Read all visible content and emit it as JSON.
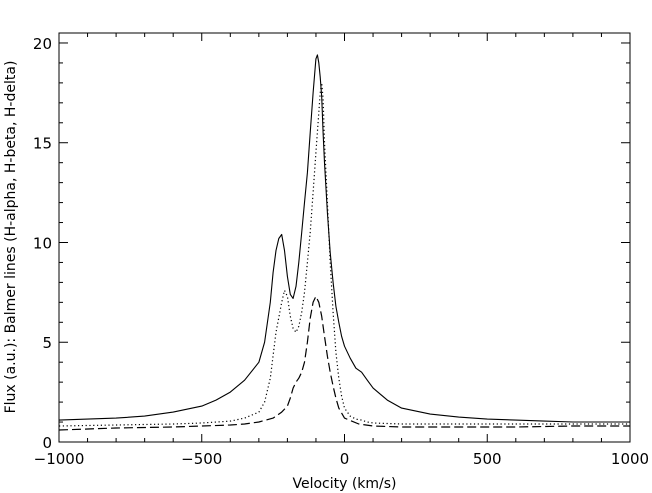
{
  "chart_data": {
    "type": "line",
    "xlabel": "Velocity (km/s)",
    "ylabel": "Flux (a.u.): Balmer lines (H-alpha, H-beta, H-delta)",
    "xlim": [
      -1000,
      1000
    ],
    "ylim": [
      0,
      20.5
    ],
    "xticks": [
      -1000,
      -500,
      0,
      500,
      1000
    ],
    "xtick_labels": [
      "−1000",
      "−500",
      "0",
      "500",
      "1000"
    ],
    "yticks": [
      0,
      5,
      10,
      15,
      20
    ],
    "ytick_labels": [
      "0",
      "5",
      "10",
      "15",
      "20"
    ],
    "grid": false,
    "legend": "none",
    "series": [
      {
        "line_style": "solid",
        "x": [
          -1000,
          -900,
          -800,
          -700,
          -600,
          -500,
          -450,
          -400,
          -350,
          -300,
          -280,
          -260,
          -250,
          -240,
          -230,
          -220,
          -210,
          -200,
          -190,
          -180,
          -170,
          -160,
          -150,
          -140,
          -130,
          -120,
          -110,
          -100,
          -95,
          -90,
          -85,
          -80,
          -75,
          -70,
          -60,
          -50,
          -40,
          -30,
          -20,
          -10,
          0,
          20,
          40,
          60,
          80,
          100,
          150,
          200,
          300,
          400,
          500,
          600,
          700,
          800,
          900,
          1000
        ],
        "y": [
          1.1,
          1.15,
          1.2,
          1.3,
          1.5,
          1.8,
          2.1,
          2.5,
          3.1,
          4.0,
          5.0,
          7.0,
          8.5,
          9.6,
          10.2,
          10.4,
          9.6,
          8.3,
          7.4,
          7.2,
          7.8,
          9.0,
          10.5,
          12.0,
          13.5,
          15.5,
          17.5,
          19.2,
          19.4,
          19.0,
          18.3,
          17.3,
          15.5,
          14.0,
          11.5,
          9.5,
          8.0,
          6.8,
          6.0,
          5.3,
          4.8,
          4.2,
          3.7,
          3.5,
          3.1,
          2.7,
          2.1,
          1.7,
          1.4,
          1.25,
          1.15,
          1.1,
          1.05,
          1.0,
          1.0,
          1.0
        ]
      },
      {
        "line_style": "dotted",
        "x": [
          -1000,
          -800,
          -600,
          -500,
          -400,
          -350,
          -300,
          -280,
          -260,
          -240,
          -220,
          -210,
          -200,
          -190,
          -180,
          -170,
          -160,
          -150,
          -140,
          -130,
          -120,
          -110,
          -100,
          -90,
          -85,
          -80,
          -75,
          -70,
          -60,
          -50,
          -40,
          -30,
          -20,
          -10,
          0,
          20,
          40,
          60,
          80,
          100,
          200,
          400,
          600,
          800,
          1000
        ],
        "y": [
          0.8,
          0.85,
          0.9,
          0.95,
          1.05,
          1.2,
          1.5,
          2.0,
          3.2,
          5.5,
          7.0,
          7.6,
          7.3,
          6.3,
          5.7,
          5.5,
          5.8,
          6.5,
          7.5,
          9.0,
          10.5,
          12.5,
          14.5,
          16.5,
          17.5,
          18.0,
          17.2,
          15.0,
          12.0,
          9.0,
          6.5,
          4.5,
          3.2,
          2.3,
          1.7,
          1.3,
          1.15,
          1.1,
          1.0,
          0.95,
          0.9,
          0.9,
          0.9,
          0.9,
          0.9
        ]
      },
      {
        "line_style": "dashed",
        "x": [
          -1000,
          -800,
          -600,
          -500,
          -400,
          -350,
          -300,
          -250,
          -220,
          -200,
          -190,
          -180,
          -170,
          -160,
          -150,
          -140,
          -130,
          -120,
          -110,
          -100,
          -90,
          -80,
          -70,
          -60,
          -50,
          -40,
          -30,
          -20,
          0,
          50,
          100,
          200,
          400,
          600,
          800,
          1000
        ],
        "y": [
          0.6,
          0.7,
          0.75,
          0.8,
          0.85,
          0.9,
          1.0,
          1.2,
          1.5,
          1.8,
          2.2,
          2.7,
          3.0,
          3.2,
          3.5,
          4.0,
          5.0,
          6.2,
          7.0,
          7.3,
          7.0,
          6.3,
          5.3,
          4.3,
          3.5,
          2.8,
          2.2,
          1.7,
          1.2,
          0.9,
          0.8,
          0.75,
          0.75,
          0.75,
          0.8,
          0.8
        ]
      }
    ]
  }
}
